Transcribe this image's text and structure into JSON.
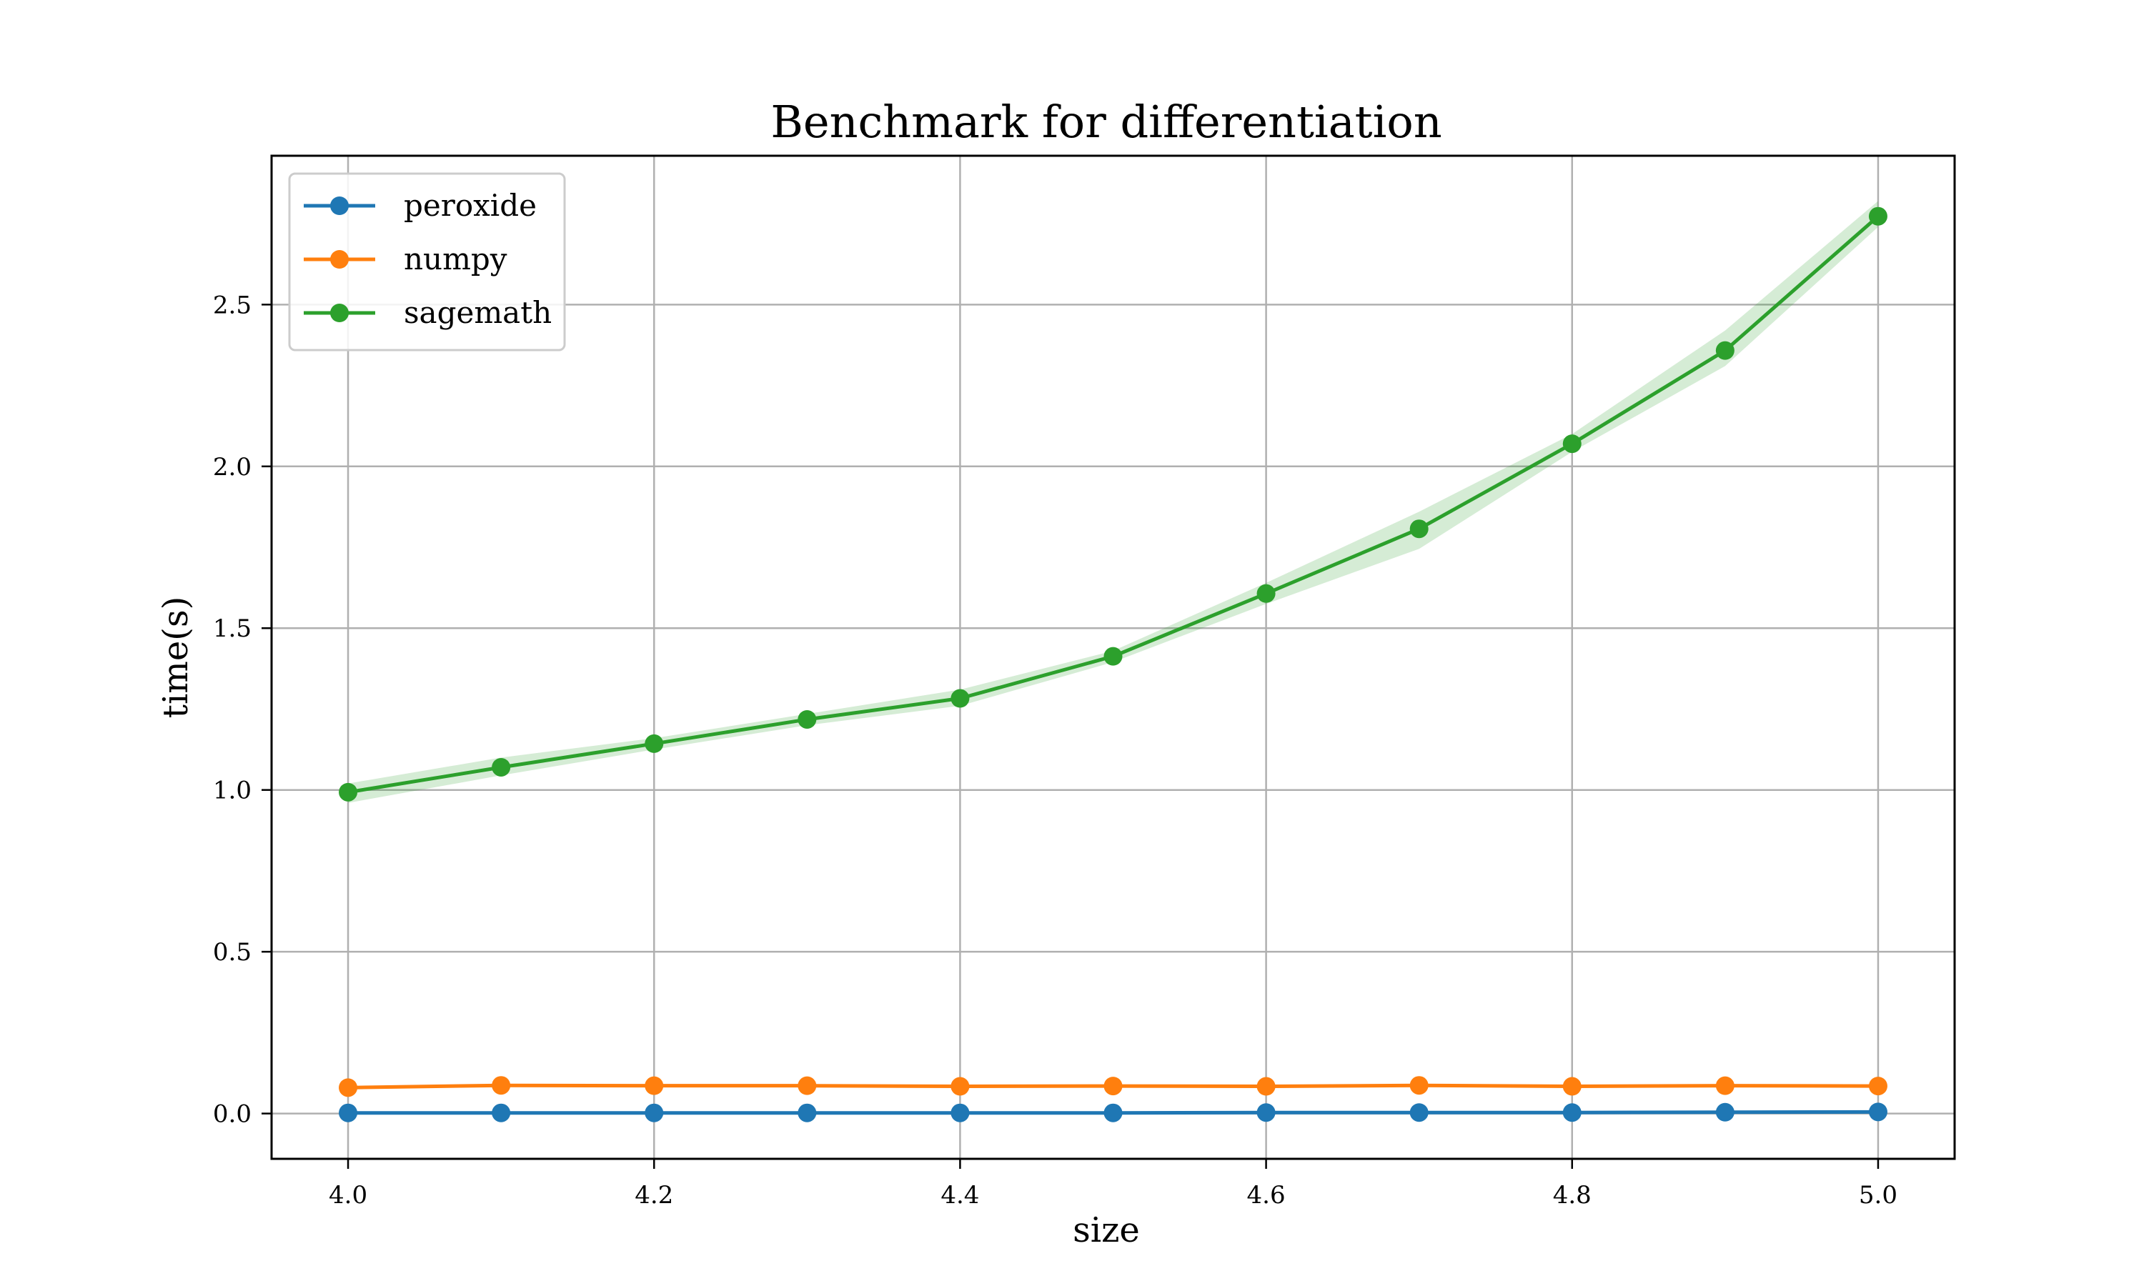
{
  "chart_data": {
    "type": "line",
    "title": "Benchmark for differentiation",
    "xlabel": "size",
    "ylabel": "time(s)",
    "xlim": [
      3.95,
      5.05
    ],
    "ylim": [
      -0.14,
      2.96
    ],
    "xticks": [
      4.0,
      4.2,
      4.4,
      4.6,
      4.8,
      5.0
    ],
    "xtick_labels": [
      "4.0",
      "4.2",
      "4.4",
      "4.6",
      "4.8",
      "5.0"
    ],
    "yticks": [
      0.0,
      0.5,
      1.0,
      1.5,
      2.0,
      2.5
    ],
    "ytick_labels": [
      "0.0",
      "0.5",
      "1.0",
      "1.5",
      "2.0",
      "2.5"
    ],
    "grid": true,
    "legend_position": "top-left",
    "x": [
      4.0,
      4.1,
      4.2,
      4.3,
      4.4,
      4.5,
      4.6,
      4.7,
      4.8,
      4.9,
      5.0
    ],
    "series": [
      {
        "name": "peroxide",
        "color": "#1f77b4",
        "values": [
          0.002,
          0.002,
          0.002,
          0.002,
          0.002,
          0.002,
          0.003,
          0.003,
          0.003,
          0.004,
          0.005
        ]
      },
      {
        "name": "numpy",
        "color": "#ff7f0e",
        "values": [
          0.08,
          0.087,
          0.086,
          0.086,
          0.084,
          0.085,
          0.084,
          0.087,
          0.084,
          0.086,
          0.085
        ]
      },
      {
        "name": "sagemath",
        "color": "#2ca02c",
        "band_color": "#2ca02c",
        "values": [
          0.993,
          1.07,
          1.143,
          1.218,
          1.283,
          1.413,
          1.607,
          1.807,
          2.07,
          2.358,
          2.773
        ],
        "band_lower": [
          0.96,
          1.045,
          1.125,
          1.2,
          1.26,
          1.395,
          1.575,
          1.745,
          2.045,
          2.31,
          2.74
        ],
        "band_upper": [
          1.02,
          1.1,
          1.16,
          1.235,
          1.31,
          1.43,
          1.64,
          1.86,
          2.1,
          2.42,
          2.82
        ]
      }
    ]
  }
}
